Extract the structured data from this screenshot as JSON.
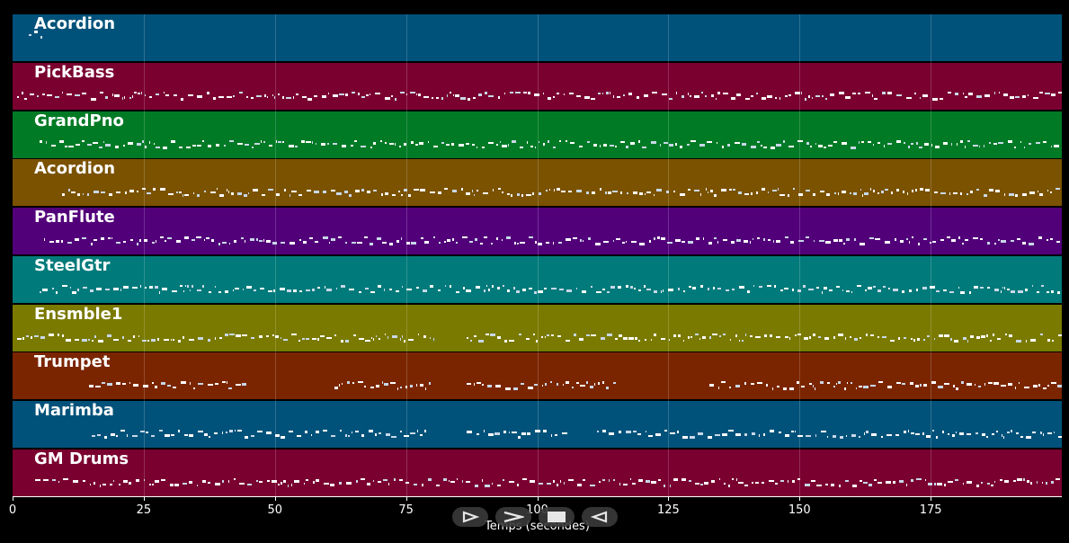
{
  "tracks": [
    {
      "name": "Acordion",
      "color": "#00527a"
    },
    {
      "name": "PickBass",
      "color": "#7a0030"
    },
    {
      "name": "GrandPno",
      "color": "#007a25"
    },
    {
      "name": "Acordion",
      "color": "#7a5200"
    },
    {
      "name": "PanFlute",
      "color": "#52007a"
    },
    {
      "name": "SteelGtr",
      "color": "#007a7a"
    },
    {
      "name": "Ensmble1",
      "color": "#7a7a00"
    },
    {
      "name": "Trumpet",
      "color": "#7a2500"
    },
    {
      "name": "Marimba",
      "color": "#00527a"
    },
    {
      "name": "GM Drums",
      "color": "#7a0030"
    }
  ],
  "axis": {
    "label": "Temps (secondes)",
    "ticks": [
      "0",
      "25",
      "50",
      "75",
      "100",
      "125",
      "150",
      "175"
    ],
    "tick_values": [
      0,
      25,
      50,
      75,
      100,
      125,
      150,
      175
    ],
    "range": [
      0,
      200
    ]
  },
  "transport": {
    "buttons": [
      "play-icon",
      "fast-forward-icon",
      "stop-icon",
      "rewind-icon"
    ]
  }
}
